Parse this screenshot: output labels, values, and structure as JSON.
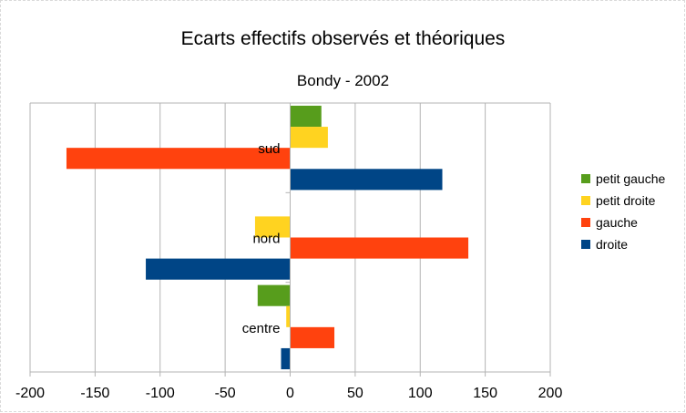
{
  "chart_data": {
    "type": "bar",
    "orientation": "horizontal",
    "title": "Ecarts effectifs observés et théoriques",
    "subtitle": "Bondy - 2002",
    "xlabel": "",
    "ylabel": "",
    "xlim": [
      -200,
      200
    ],
    "xticks": [
      "-200",
      "-150",
      "-100",
      "-50",
      "0",
      "50",
      "100",
      "150",
      "200"
    ],
    "categories": [
      "sud",
      "nord",
      "centre"
    ],
    "series": [
      {
        "name": "petit gauche",
        "color": "#579d1c",
        "values": [
          24,
          0,
          -25
        ]
      },
      {
        "name": "petit droite",
        "color": "#ffd320",
        "values": [
          29,
          -27,
          -3
        ]
      },
      {
        "name": "gauche",
        "color": "#ff420e",
        "values": [
          -172,
          137,
          34
        ]
      },
      {
        "name": "droite",
        "color": "#004586",
        "values": [
          117,
          -111,
          -7
        ]
      }
    ],
    "legend_position": "right",
    "grid": true
  }
}
